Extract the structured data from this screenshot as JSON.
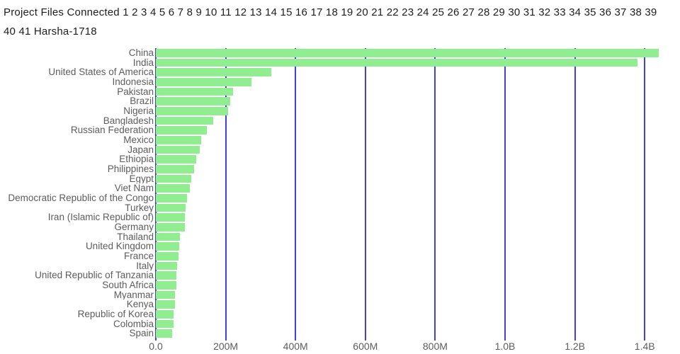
{
  "header": {
    "line1": "Project Files Connected 1 2 3 4 5 6 7 8 9 10 11 12 13 14 15 16 17 18 19 20 21 22 23 24 25 26 27 28 29 30 31 32 33 34 35 36 37 38 39",
    "line2": "40 41 Harsha-1718"
  },
  "chart_data": {
    "type": "bar",
    "orientation": "horizontal",
    "title": "",
    "xlabel": "",
    "ylabel": "",
    "grid": true,
    "legend": false,
    "bar_color": "#90EE90",
    "grid_color": "#2626dd",
    "label_color": "#5c5c5c",
    "unit": "people (millions)",
    "xlim_millions": [
      0,
      1490
    ],
    "categories": [
      "China",
      "India",
      "United States of America",
      "Indonesia",
      "Pakistan",
      "Brazil",
      "Nigeria",
      "Bangladesh",
      "Russian Federation",
      "Mexico",
      "Japan",
      "Ethiopia",
      "Philippines",
      "Egypt",
      "Viet Nam",
      "Democratic Republic of the Congo",
      "Turkey",
      "Iran (Islamic Republic of)",
      "Germany",
      "Thailand",
      "United Kingdom",
      "France",
      "Italy",
      "United Republic of Tanzania",
      "South Africa",
      "Myanmar",
      "Kenya",
      "Republic of Korea",
      "Colombia",
      "Spain"
    ],
    "values_millions": [
      1439.3,
      1380.0,
      331.0,
      273.5,
      220.9,
      212.6,
      206.1,
      164.7,
      145.9,
      128.9,
      126.5,
      115.0,
      109.6,
      102.3,
      97.3,
      89.6,
      84.3,
      84.0,
      83.8,
      69.8,
      67.9,
      65.3,
      60.5,
      59.7,
      59.3,
      54.4,
      53.8,
      51.3,
      50.9,
      46.8
    ],
    "x_ticks": [
      {
        "value_millions": 0,
        "label": "0.0"
      },
      {
        "value_millions": 200,
        "label": "200M"
      },
      {
        "value_millions": 400,
        "label": "400M"
      },
      {
        "value_millions": 600,
        "label": "600M"
      },
      {
        "value_millions": 800,
        "label": "800M"
      },
      {
        "value_millions": 1000,
        "label": "1.0B"
      },
      {
        "value_millions": 1200,
        "label": "1.2B"
      },
      {
        "value_millions": 1400,
        "label": "1.4B"
      }
    ]
  }
}
